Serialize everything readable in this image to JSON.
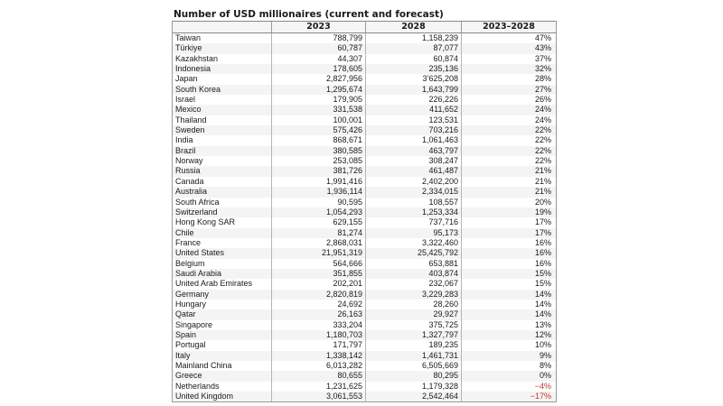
{
  "title": "Number of USD millionaires (current and forecast)",
  "columns": [
    "",
    "2023",
    "2028",
    "2023–2028"
  ],
  "rows": [
    {
      "country": "Taiwan",
      "y2023": "788,799",
      "y2028": "1,158,239",
      "change": "47%"
    },
    {
      "country": "Türkiye",
      "y2023": "60,787",
      "y2028": "87,077",
      "change": "43%"
    },
    {
      "country": "Kazakhstan",
      "y2023": "44,307",
      "y2028": "60,874",
      "change": "37%"
    },
    {
      "country": "Indonesia",
      "y2023": "178,605",
      "y2028": "235,136",
      "change": "32%"
    },
    {
      "country": "Japan",
      "y2023": "2,827,956",
      "y2028": "3’625,208",
      "change": "28%"
    },
    {
      "country": "South Korea",
      "y2023": "1,295,674",
      "y2028": "1,643,799",
      "change": "27%"
    },
    {
      "country": "Israel",
      "y2023": "179,905",
      "y2028": "226,226",
      "change": "26%"
    },
    {
      "country": "Mexico",
      "y2023": "331,538",
      "y2028": "411,652",
      "change": "24%"
    },
    {
      "country": "Thailand",
      "y2023": "100,001",
      "y2028": "123,531",
      "change": "24%"
    },
    {
      "country": "Sweden",
      "y2023": "575,426",
      "y2028": "703,216",
      "change": "22%"
    },
    {
      "country": "India",
      "y2023": "868,671",
      "y2028": "1,061,463",
      "change": "22%"
    },
    {
      "country": "Brazil",
      "y2023": "380,585",
      "y2028": "463,797",
      "change": "22%"
    },
    {
      "country": "Norway",
      "y2023": "253,085",
      "y2028": "308,247",
      "change": "22%"
    },
    {
      "country": "Russia",
      "y2023": "381,726",
      "y2028": "461,487",
      "change": "21%"
    },
    {
      "country": "Canada",
      "y2023": "1,991,416",
      "y2028": "2,402,200",
      "change": "21%"
    },
    {
      "country": "Australia",
      "y2023": "1,936,114",
      "y2028": "2,334,015",
      "change": "21%"
    },
    {
      "country": "South Africa",
      "y2023": "90,595",
      "y2028": "108,557",
      "change": "20%"
    },
    {
      "country": "Switzerland",
      "y2023": "1,054,293",
      "y2028": "1,253,334",
      "change": "19%"
    },
    {
      "country": "Hong Kong SAR",
      "y2023": "629,155",
      "y2028": "737,716",
      "change": "17%"
    },
    {
      "country": "Chile",
      "y2023": "81,274",
      "y2028": "95,173",
      "change": "17%"
    },
    {
      "country": "France",
      "y2023": "2,868,031",
      "y2028": "3,322,460",
      "change": "16%"
    },
    {
      "country": "United States",
      "y2023": "21,951,319",
      "y2028": "25,425,792",
      "change": "16%"
    },
    {
      "country": "Belgium",
      "y2023": "564,666",
      "y2028": "653,881",
      "change": "16%"
    },
    {
      "country": "Saudi Arabia",
      "y2023": "351,855",
      "y2028": "403,874",
      "change": "15%"
    },
    {
      "country": "United Arab Emirates",
      "y2023": "202,201",
      "y2028": "232,067",
      "change": "15%"
    },
    {
      "country": "Germany",
      "y2023": "2,820,819",
      "y2028": "3,229,283",
      "change": "14%"
    },
    {
      "country": "Hungary",
      "y2023": "24,692",
      "y2028": "28,260",
      "change": "14%"
    },
    {
      "country": "Qatar",
      "y2023": "26,163",
      "y2028": "29,927",
      "change": "14%"
    },
    {
      "country": "Singapore",
      "y2023": "333,204",
      "y2028": "375,725",
      "change": "13%"
    },
    {
      "country": "Spain",
      "y2023": "1,180,703",
      "y2028": "1,327,797",
      "change": "12%"
    },
    {
      "country": "Portugal",
      "y2023": "171,797",
      "y2028": "189,235",
      "change": "10%"
    },
    {
      "country": "Italy",
      "y2023": "1,338,142",
      "y2028": "1,461,731",
      "change": "9%"
    },
    {
      "country": "Mainland China",
      "y2023": "6,013,282",
      "y2028": "6,505,669",
      "change": "8%"
    },
    {
      "country": "Greece",
      "y2023": "80,655",
      "y2028": "80,295",
      "change": "0%"
    },
    {
      "country": "Netherlands",
      "y2023": "1,231,625",
      "y2028": "1,179,328",
      "change": "−4%",
      "negative": true
    },
    {
      "country": "United Kingdom",
      "y2023": "3,061,553",
      "y2028": "2,542,464",
      "change": "−17%",
      "negative": true
    }
  ],
  "colors": {
    "negative": "#c0392b",
    "zebra": "#f4f4f4",
    "grid": "#b5b5b5"
  }
}
